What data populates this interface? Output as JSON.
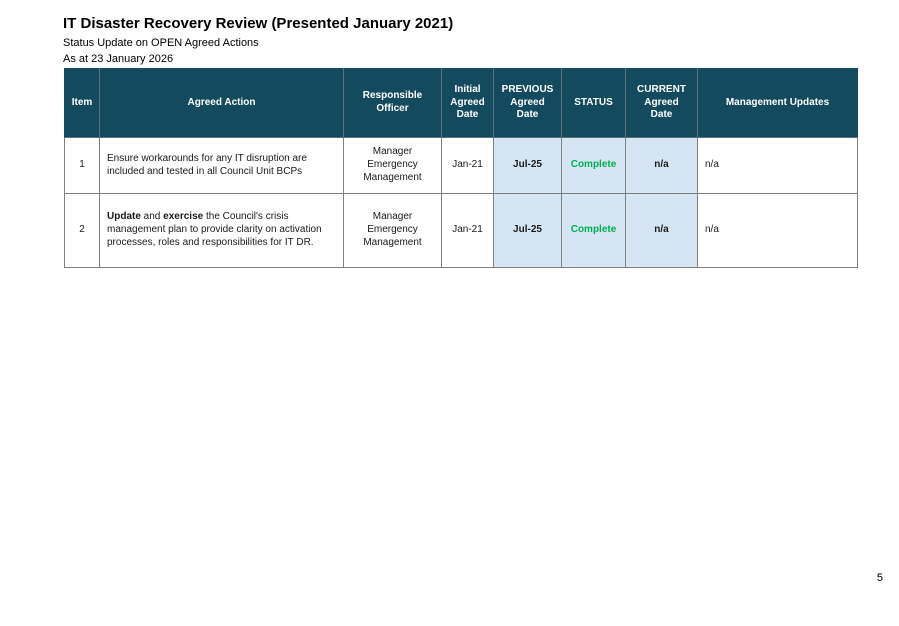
{
  "page": {
    "title": "IT Disaster Recovery Review (Presented January 2021)",
    "subtitle_status": "Status Update on OPEN Agreed Actions",
    "subtitle_asat": "As at 23 January 2026",
    "page_number": "5"
  },
  "colors": {
    "header_bg": "#144A5E",
    "highlight_bg": "#D6E5F3",
    "status_complete": "#00B050",
    "border": "#808080"
  },
  "table": {
    "columns": [
      {
        "label": "Item"
      },
      {
        "label": "Agreed Action"
      },
      {
        "label": "Responsible\nOfficer"
      },
      {
        "label": "Initial\nAgreed\nDate"
      },
      {
        "label": "PREVIOUS\nAgreed\nDate"
      },
      {
        "label": "STATUS"
      },
      {
        "label": "CURRENT\nAgreed\nDate"
      },
      {
        "label": "Management Updates"
      }
    ],
    "rows": [
      {
        "item": "1",
        "action_runs": [
          {
            "t": "Ensure workarounds for any IT disruption are included and tested in all Council Unit BCPs",
            "b": false
          }
        ],
        "responsible_officer": "Manager\nEmergency\nManagement",
        "initial_agreed_date": "Jan-21",
        "previous_agreed_date": "Jul-25",
        "status": "Complete",
        "current_agreed_date": "n/a",
        "management_updates": "n/a"
      },
      {
        "item": "2",
        "action_runs": [
          {
            "t": "Update",
            "b": true
          },
          {
            "t": " and ",
            "b": false
          },
          {
            "t": "exercise",
            "b": true
          },
          {
            "t": " the Council's crisis management plan to provide clarity on activation processes, roles and responsibilities for IT DR.",
            "b": false
          }
        ],
        "responsible_officer": "Manager\nEmergency\nManagement",
        "initial_agreed_date": "Jan-21",
        "previous_agreed_date": "Jul-25",
        "status": "Complete",
        "current_agreed_date": "n/a",
        "management_updates": "n/a"
      }
    ]
  }
}
